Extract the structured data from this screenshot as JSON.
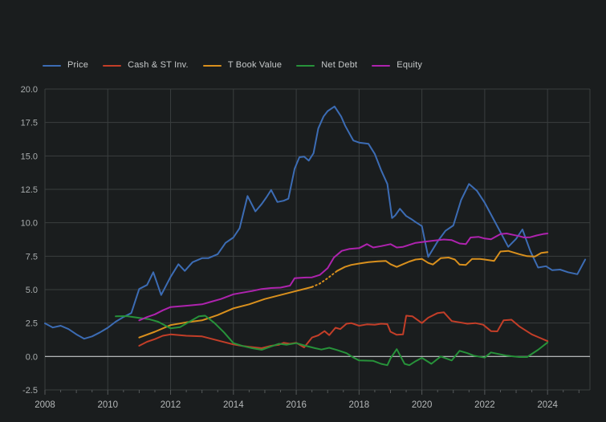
{
  "page": {
    "background": "#1a1d1e",
    "grid_color": "#3a3e3f",
    "zero_line_color": "#c9cccc",
    "tick_color": "#55595a",
    "y_label_color": "#a9adae",
    "x_label_color": "#b4b7b8"
  },
  "chart_data": {
    "type": "line",
    "title": "",
    "xlabel": "",
    "ylabel": "",
    "grid": true,
    "legend_position": "top-left",
    "x_range": [
      2008,
      2025.35
    ],
    "y_range": [
      -2.5,
      20
    ],
    "y_ticks": [
      {
        "value": 20,
        "label": "20.0"
      },
      {
        "value": 17.5,
        "label": "17.5"
      },
      {
        "value": 15,
        "label": "15.0"
      },
      {
        "value": 12.5,
        "label": "12.5"
      },
      {
        "value": 10,
        "label": "10.0"
      },
      {
        "value": 7.5,
        "label": "7.5"
      },
      {
        "value": 5,
        "label": "5.0"
      },
      {
        "value": 2.5,
        "label": "2.5"
      },
      {
        "value": 0,
        "label": "0.0"
      },
      {
        "value": -2.5,
        "label": "-2.5"
      }
    ],
    "x_ticks": [
      {
        "value": 2008,
        "label": "2008"
      },
      {
        "value": 2010,
        "label": "2010"
      },
      {
        "value": 2012,
        "label": "2012"
      },
      {
        "value": 2014,
        "label": "2014"
      },
      {
        "value": 2016,
        "label": "2016"
      },
      {
        "value": 2018,
        "label": "2018"
      },
      {
        "value": 2020,
        "label": "2020"
      },
      {
        "value": 2022,
        "label": "2022"
      },
      {
        "value": 2024,
        "label": "2024"
      }
    ],
    "zero_line": true,
    "series": [
      {
        "name": "Price",
        "color": "#3c6cb4",
        "points": [
          [
            2008.0,
            2.48
          ],
          [
            2008.25,
            2.17
          ],
          [
            2008.5,
            2.3
          ],
          [
            2008.75,
            2.05
          ],
          [
            2009.0,
            1.66
          ],
          [
            2009.25,
            1.33
          ],
          [
            2009.5,
            1.5
          ],
          [
            2009.75,
            1.8
          ],
          [
            2010.0,
            2.15
          ],
          [
            2010.25,
            2.6
          ],
          [
            2010.5,
            2.95
          ],
          [
            2010.75,
            3.25
          ],
          [
            2011.0,
            5.05
          ],
          [
            2011.25,
            5.35
          ],
          [
            2011.45,
            6.3
          ],
          [
            2011.7,
            4.6
          ],
          [
            2012.0,
            5.95
          ],
          [
            2012.25,
            6.9
          ],
          [
            2012.45,
            6.4
          ],
          [
            2012.7,
            7.05
          ],
          [
            2013.0,
            7.35
          ],
          [
            2013.2,
            7.35
          ],
          [
            2013.5,
            7.65
          ],
          [
            2013.75,
            8.5
          ],
          [
            2014.0,
            8.9
          ],
          [
            2014.2,
            9.6
          ],
          [
            2014.45,
            12.0
          ],
          [
            2014.7,
            10.85
          ],
          [
            2014.9,
            11.4
          ],
          [
            2015.05,
            11.9
          ],
          [
            2015.2,
            12.45
          ],
          [
            2015.4,
            11.55
          ],
          [
            2015.6,
            11.65
          ],
          [
            2015.75,
            11.8
          ],
          [
            2015.95,
            14.05
          ],
          [
            2016.1,
            14.9
          ],
          [
            2016.25,
            14.95
          ],
          [
            2016.4,
            14.65
          ],
          [
            2016.55,
            15.2
          ],
          [
            2016.7,
            17.05
          ],
          [
            2016.87,
            17.95
          ],
          [
            2017.0,
            18.35
          ],
          [
            2017.22,
            18.7
          ],
          [
            2017.43,
            17.95
          ],
          [
            2017.56,
            17.25
          ],
          [
            2017.7,
            16.65
          ],
          [
            2017.82,
            16.15
          ],
          [
            2018.0,
            16.0
          ],
          [
            2018.3,
            15.9
          ],
          [
            2018.5,
            15.15
          ],
          [
            2018.7,
            13.95
          ],
          [
            2018.9,
            12.9
          ],
          [
            2019.05,
            10.35
          ],
          [
            2019.15,
            10.55
          ],
          [
            2019.3,
            11.05
          ],
          [
            2019.5,
            10.5
          ],
          [
            2019.65,
            10.3
          ],
          [
            2019.8,
            10.05
          ],
          [
            2020.0,
            9.75
          ],
          [
            2020.2,
            7.45
          ],
          [
            2020.5,
            8.6
          ],
          [
            2020.75,
            9.4
          ],
          [
            2021.0,
            9.8
          ],
          [
            2021.25,
            11.7
          ],
          [
            2021.5,
            12.9
          ],
          [
            2021.75,
            12.4
          ],
          [
            2022.0,
            11.5
          ],
          [
            2022.25,
            10.4
          ],
          [
            2022.5,
            9.3
          ],
          [
            2022.75,
            8.2
          ],
          [
            2023.0,
            8.8
          ],
          [
            2023.2,
            9.5
          ],
          [
            2023.45,
            7.9
          ],
          [
            2023.7,
            6.65
          ],
          [
            2023.95,
            6.75
          ],
          [
            2024.15,
            6.45
          ],
          [
            2024.4,
            6.5
          ],
          [
            2024.65,
            6.3
          ],
          [
            2024.95,
            6.15
          ],
          [
            2025.2,
            7.25
          ]
        ]
      },
      {
        "name": "Cash & ST Inv.",
        "color": "#c33e28",
        "points": [
          [
            2011.0,
            0.8
          ],
          [
            2011.25,
            1.1
          ],
          [
            2011.5,
            1.3
          ],
          [
            2011.75,
            1.55
          ],
          [
            2012.0,
            1.65
          ],
          [
            2012.5,
            1.55
          ],
          [
            2013.0,
            1.5
          ],
          [
            2013.25,
            1.35
          ],
          [
            2013.5,
            1.2
          ],
          [
            2013.75,
            1.05
          ],
          [
            2014.0,
            0.9
          ],
          [
            2014.25,
            0.8
          ],
          [
            2014.5,
            0.72
          ],
          [
            2014.9,
            0.62
          ],
          [
            2015.2,
            0.8
          ],
          [
            2015.45,
            0.88
          ],
          [
            2015.6,
            1.02
          ],
          [
            2015.8,
            0.95
          ],
          [
            2016.0,
            1.02
          ],
          [
            2016.25,
            0.68
          ],
          [
            2016.5,
            1.42
          ],
          [
            2016.7,
            1.58
          ],
          [
            2016.9,
            1.9
          ],
          [
            2017.05,
            1.6
          ],
          [
            2017.25,
            2.15
          ],
          [
            2017.4,
            2.05
          ],
          [
            2017.6,
            2.45
          ],
          [
            2017.75,
            2.5
          ],
          [
            2018.0,
            2.3
          ],
          [
            2018.25,
            2.4
          ],
          [
            2018.5,
            2.38
          ],
          [
            2018.7,
            2.45
          ],
          [
            2018.9,
            2.42
          ],
          [
            2019.0,
            1.85
          ],
          [
            2019.2,
            1.62
          ],
          [
            2019.4,
            1.65
          ],
          [
            2019.5,
            3.05
          ],
          [
            2019.7,
            3.0
          ],
          [
            2020.0,
            2.5
          ],
          [
            2020.2,
            2.9
          ],
          [
            2020.5,
            3.25
          ],
          [
            2020.7,
            3.3
          ],
          [
            2020.95,
            2.65
          ],
          [
            2021.2,
            2.55
          ],
          [
            2021.45,
            2.45
          ],
          [
            2021.7,
            2.5
          ],
          [
            2021.95,
            2.38
          ],
          [
            2022.2,
            1.9
          ],
          [
            2022.4,
            1.88
          ],
          [
            2022.6,
            2.7
          ],
          [
            2022.85,
            2.75
          ],
          [
            2023.1,
            2.25
          ],
          [
            2023.5,
            1.65
          ],
          [
            2023.75,
            1.4
          ],
          [
            2024.0,
            1.15
          ]
        ]
      },
      {
        "name": "T Book Value",
        "color": "#d9901d",
        "dash_range": [
          2016.5,
          2017.3
        ],
        "points": [
          [
            2011.0,
            1.42
          ],
          [
            2011.5,
            1.85
          ],
          [
            2012.0,
            2.35
          ],
          [
            2012.5,
            2.55
          ],
          [
            2013.0,
            2.7
          ],
          [
            2013.5,
            3.1
          ],
          [
            2014.0,
            3.6
          ],
          [
            2014.5,
            3.9
          ],
          [
            2015.0,
            4.3
          ],
          [
            2015.5,
            4.6
          ],
          [
            2016.0,
            4.9
          ],
          [
            2016.5,
            5.2
          ],
          [
            2016.75,
            5.45
          ],
          [
            2017.0,
            5.85
          ],
          [
            2017.3,
            6.4
          ],
          [
            2017.55,
            6.7
          ],
          [
            2017.75,
            6.85
          ],
          [
            2018.0,
            6.95
          ],
          [
            2018.3,
            7.05
          ],
          [
            2018.6,
            7.12
          ],
          [
            2018.85,
            7.15
          ],
          [
            2019.0,
            6.9
          ],
          [
            2019.2,
            6.7
          ],
          [
            2019.4,
            6.9
          ],
          [
            2019.6,
            7.1
          ],
          [
            2019.8,
            7.25
          ],
          [
            2020.0,
            7.3
          ],
          [
            2020.2,
            7.0
          ],
          [
            2020.35,
            6.88
          ],
          [
            2020.6,
            7.35
          ],
          [
            2020.85,
            7.4
          ],
          [
            2021.05,
            7.25
          ],
          [
            2021.2,
            6.87
          ],
          [
            2021.4,
            6.85
          ],
          [
            2021.6,
            7.3
          ],
          [
            2021.85,
            7.3
          ],
          [
            2022.0,
            7.25
          ],
          [
            2022.3,
            7.15
          ],
          [
            2022.5,
            7.85
          ],
          [
            2022.75,
            7.9
          ],
          [
            2023.1,
            7.65
          ],
          [
            2023.35,
            7.5
          ],
          [
            2023.6,
            7.48
          ],
          [
            2023.8,
            7.75
          ],
          [
            2024.0,
            7.8
          ]
        ]
      },
      {
        "name": "Net Debt",
        "color": "#27923a",
        "points": [
          [
            2010.25,
            3.0
          ],
          [
            2010.6,
            3.02
          ],
          [
            2011.0,
            2.88
          ],
          [
            2011.3,
            2.8
          ],
          [
            2011.6,
            2.6
          ],
          [
            2012.0,
            2.1
          ],
          [
            2012.3,
            2.2
          ],
          [
            2012.6,
            2.6
          ],
          [
            2012.9,
            3.0
          ],
          [
            2013.1,
            3.05
          ],
          [
            2013.4,
            2.5
          ],
          [
            2013.7,
            1.8
          ],
          [
            2014.0,
            1.0
          ],
          [
            2014.3,
            0.78
          ],
          [
            2014.6,
            0.62
          ],
          [
            2014.9,
            0.5
          ],
          [
            2015.2,
            0.75
          ],
          [
            2015.45,
            0.95
          ],
          [
            2015.7,
            0.88
          ],
          [
            2016.0,
            1.0
          ],
          [
            2016.3,
            0.8
          ],
          [
            2016.6,
            0.62
          ],
          [
            2016.8,
            0.52
          ],
          [
            2017.05,
            0.65
          ],
          [
            2017.3,
            0.48
          ],
          [
            2017.6,
            0.25
          ],
          [
            2017.8,
            -0.05
          ],
          [
            2018.0,
            -0.3
          ],
          [
            2018.45,
            -0.33
          ],
          [
            2018.7,
            -0.55
          ],
          [
            2018.9,
            -0.65
          ],
          [
            2019.0,
            -0.15
          ],
          [
            2019.2,
            0.55
          ],
          [
            2019.45,
            -0.55
          ],
          [
            2019.6,
            -0.65
          ],
          [
            2019.8,
            -0.35
          ],
          [
            2020.0,
            -0.1
          ],
          [
            2020.3,
            -0.55
          ],
          [
            2020.6,
            0.0
          ],
          [
            2020.95,
            -0.3
          ],
          [
            2021.2,
            0.42
          ],
          [
            2021.45,
            0.25
          ],
          [
            2021.65,
            0.06
          ],
          [
            2022.0,
            -0.08
          ],
          [
            2022.2,
            0.3
          ],
          [
            2022.7,
            0.06
          ],
          [
            2023.1,
            -0.04
          ],
          [
            2023.35,
            -0.04
          ],
          [
            2023.7,
            0.5
          ],
          [
            2024.0,
            1.05
          ]
        ]
      },
      {
        "name": "Equity",
        "color": "#ae23ae",
        "points": [
          [
            2011.0,
            2.7
          ],
          [
            2011.25,
            2.95
          ],
          [
            2011.5,
            3.15
          ],
          [
            2011.75,
            3.45
          ],
          [
            2012.0,
            3.7
          ],
          [
            2012.3,
            3.75
          ],
          [
            2012.6,
            3.82
          ],
          [
            2013.0,
            3.9
          ],
          [
            2013.3,
            4.1
          ],
          [
            2013.6,
            4.3
          ],
          [
            2014.0,
            4.65
          ],
          [
            2014.3,
            4.78
          ],
          [
            2014.6,
            4.9
          ],
          [
            2014.9,
            5.05
          ],
          [
            2015.2,
            5.12
          ],
          [
            2015.5,
            5.15
          ],
          [
            2015.8,
            5.3
          ],
          [
            2015.95,
            5.85
          ],
          [
            2016.25,
            5.9
          ],
          [
            2016.5,
            5.92
          ],
          [
            2016.75,
            6.1
          ],
          [
            2017.0,
            6.6
          ],
          [
            2017.2,
            7.4
          ],
          [
            2017.45,
            7.9
          ],
          [
            2017.7,
            8.05
          ],
          [
            2018.0,
            8.1
          ],
          [
            2018.25,
            8.4
          ],
          [
            2018.45,
            8.15
          ],
          [
            2018.7,
            8.25
          ],
          [
            2019.0,
            8.4
          ],
          [
            2019.2,
            8.15
          ],
          [
            2019.4,
            8.2
          ],
          [
            2019.6,
            8.35
          ],
          [
            2019.8,
            8.5
          ],
          [
            2020.0,
            8.55
          ],
          [
            2020.3,
            8.65
          ],
          [
            2020.7,
            8.75
          ],
          [
            2020.95,
            8.7
          ],
          [
            2021.2,
            8.45
          ],
          [
            2021.4,
            8.4
          ],
          [
            2021.55,
            8.9
          ],
          [
            2021.8,
            8.95
          ],
          [
            2022.0,
            8.82
          ],
          [
            2022.2,
            8.76
          ],
          [
            2022.5,
            9.15
          ],
          [
            2022.7,
            9.2
          ],
          [
            2022.9,
            9.1
          ],
          [
            2023.1,
            9.0
          ],
          [
            2023.25,
            8.9
          ],
          [
            2023.45,
            8.92
          ],
          [
            2023.65,
            9.05
          ],
          [
            2023.85,
            9.15
          ],
          [
            2024.0,
            9.2
          ]
        ]
      }
    ]
  }
}
